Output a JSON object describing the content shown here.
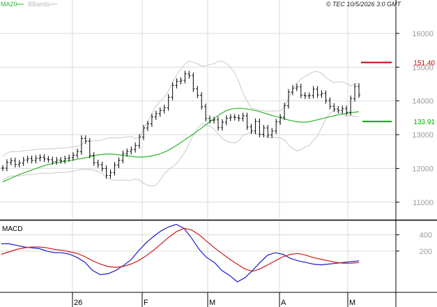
{
  "header": {
    "legend": [
      {
        "label": "MA20",
        "color": "#2bb52b"
      },
      {
        "label": "BBands",
        "color": "#b8b8b8"
      }
    ],
    "copyright": "© TEC 10/5/2026 3:0 GMT"
  },
  "colors": {
    "price": "#000000",
    "ma20": "#2bb52b",
    "bbands": "#c8c8c8",
    "grid": "#d9d9d9",
    "macd_line": "#1a1acc",
    "signal_line": "#cc1a1a",
    "resistance": "#cc0000",
    "support": "#00aa00",
    "axis_text": "#9a9a9a"
  },
  "chart_data": [
    {
      "type": "line",
      "name": "price-panel",
      "x_ticks": [
        "26",
        "F",
        "M",
        "A",
        "M"
      ],
      "y_ticks": [
        "11000",
        "12000",
        "13000",
        "14000",
        "15000",
        "16000"
      ],
      "ylim": [
        10500,
        16700
      ],
      "grid": true,
      "annotations": [
        {
          "label": "151.40",
          "value": 15140,
          "color": "#cc0000"
        },
        {
          "label": "133.91",
          "value": 13391,
          "color": "#00aa00"
        }
      ],
      "series": [
        {
          "name": "MA20",
          "values": [
            11600,
            11680,
            11750,
            11820,
            11880,
            11940,
            12000,
            12060,
            12110,
            12150,
            12180,
            12210,
            12230,
            12260,
            12290,
            12320,
            12360,
            12400,
            12420,
            12430,
            12420,
            12400,
            12380,
            12360,
            12340,
            12340,
            12350,
            12380,
            12420,
            12480,
            12560,
            12660,
            12770,
            12880,
            12990,
            13110,
            13230,
            13360,
            13480,
            13600,
            13700,
            13760,
            13780,
            13780,
            13760,
            13730,
            13690,
            13640,
            13590,
            13540,
            13500,
            13450,
            13410,
            13380,
            13370,
            13380,
            13420,
            13460,
            13500,
            13540,
            13580,
            13610,
            13640,
            13660,
            13680
          ]
        }
      ],
      "ohlc_close": [
        12010,
        12180,
        12230,
        12120,
        12160,
        12250,
        12290,
        12240,
        12300,
        12330,
        12280,
        12260,
        12200,
        12250,
        12230,
        12290,
        12320,
        12390,
        12500,
        12890,
        12810,
        12390,
        12170,
        12110,
        12000,
        11790,
        11880,
        12100,
        12240,
        12440,
        12500,
        12560,
        12680,
        12930,
        13200,
        13320,
        13530,
        13620,
        13720,
        13800,
        14110,
        14460,
        14580,
        14610,
        14800,
        14750,
        14360,
        14170,
        13830,
        13480,
        13420,
        13440,
        13210,
        13370,
        13490,
        13520,
        13510,
        13480,
        13560,
        13230,
        13110,
        13390,
        13010,
        13200,
        12990,
        13110,
        13380,
        13520,
        13860,
        14260,
        14380,
        14420,
        14170,
        14150,
        14160,
        14350,
        14180,
        14220,
        14010,
        13840,
        13760,
        13720,
        13770,
        13660,
        14070,
        14430,
        14180
      ]
    },
    {
      "type": "line",
      "name": "macd-panel",
      "title": "MACD",
      "y_ticks": [
        "200",
        "400"
      ],
      "ylim": [
        -300,
        560
      ],
      "series": [
        {
          "name": "MACD",
          "values": [
            290,
            290,
            270,
            250,
            240,
            230,
            200,
            180,
            180,
            160,
            120,
            60,
            -40,
            -90,
            -80,
            -40,
            20,
            90,
            200,
            300,
            380,
            450,
            500,
            530,
            480,
            360,
            220,
            120,
            60,
            -40,
            -100,
            -180,
            -130,
            -40,
            60,
            150,
            180,
            160,
            110,
            80,
            60,
            40,
            30,
            40,
            50,
            60,
            70,
            80
          ]
        },
        {
          "name": "Signal",
          "values": [
            160,
            190,
            220,
            240,
            250,
            250,
            240,
            220,
            210,
            190,
            170,
            130,
            80,
            40,
            10,
            0,
            10,
            40,
            80,
            140,
            210,
            290,
            370,
            440,
            480,
            460,
            400,
            320,
            240,
            170,
            100,
            40,
            -20,
            -50,
            -20,
            30,
            80,
            130,
            160,
            170,
            150,
            120,
            100,
            80,
            60,
            50,
            50,
            60
          ]
        }
      ]
    }
  ]
}
